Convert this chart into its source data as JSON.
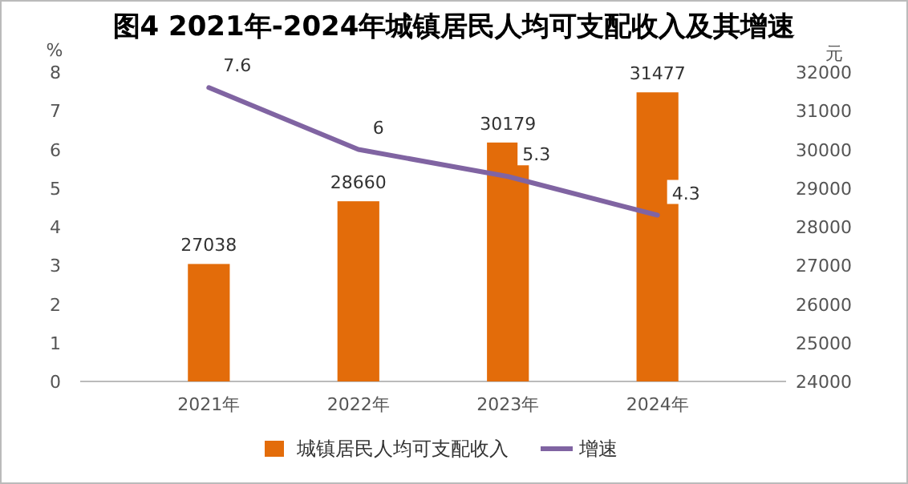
{
  "chart_data": {
    "type": "bar",
    "title": "图4  2021年-2024年城镇居民人均可支配收入及其增速",
    "categories": [
      "2021年",
      "2022年",
      "2023年",
      "2024年"
    ],
    "series": [
      {
        "name": "城镇居民人均可支配收入",
        "axis": "y2",
        "color": "#e36c0a",
        "values": [
          27038,
          28660,
          30179,
          31477
        ]
      },
      {
        "name": "增速",
        "type": "line",
        "axis": "y",
        "color": "#8064a2",
        "values": [
          7.6,
          6,
          5.3,
          4.3
        ]
      }
    ],
    "ylabel": "%",
    "y2label": "元",
    "ylim": [
      0,
      8
    ],
    "yticks": [
      0,
      1,
      2,
      3,
      4,
      5,
      6,
      7,
      8
    ],
    "y2lim": [
      24000,
      32000
    ],
    "y2ticks": [
      24000,
      25000,
      26000,
      27000,
      28000,
      29000,
      30000,
      31000,
      32000
    ],
    "data_labels": true,
    "legend": "bottom",
    "marker": "none",
    "line_style": "solid"
  }
}
